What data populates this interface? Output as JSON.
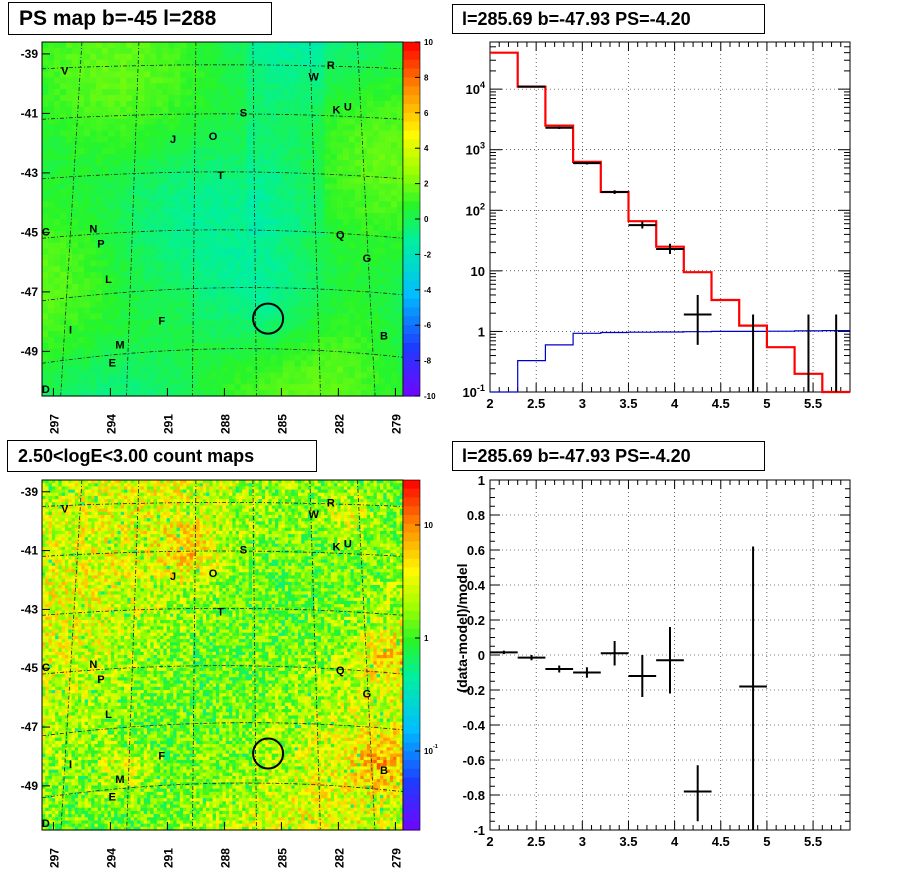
{
  "titles": {
    "map1": "PS map b=-45 l=288",
    "spec": "l=285.69 b=-47.93 PS=-4.20",
    "map2": "2.50<logE<3.00 count maps",
    "resid": "l=285.69 b=-47.93 PS=-4.20"
  },
  "chart_data": [
    {
      "type": "heatmap",
      "title": "PS map b=-45 l=288",
      "x_ticks": [
        "297",
        "294",
        "291",
        "288",
        "285",
        "282",
        "279"
      ],
      "y_ticks": [
        "-39",
        "-41",
        "-43",
        "-45",
        "-47",
        "-49"
      ],
      "xlim": [
        297.6,
        278.6
      ],
      "ylim": [
        -50.5,
        -38.6
      ],
      "colorbar": {
        "min": -10,
        "max": 10,
        "ticks": [
          "10",
          "8",
          "6",
          "4",
          "2",
          "0",
          "-2",
          "-4",
          "-6",
          "-8",
          "-10"
        ]
      },
      "source_labels": [
        {
          "t": "V",
          "l": 296.4,
          "b": -39.7
        },
        {
          "t": "W",
          "l": 283.3,
          "b": -39.9
        },
        {
          "t": "R",
          "l": 282.4,
          "b": -39.5
        },
        {
          "t": "S",
          "l": 287.0,
          "b": -41.1
        },
        {
          "t": "K",
          "l": 282.1,
          "b": -41.0
        },
        {
          "t": "U",
          "l": 281.5,
          "b": -40.9
        },
        {
          "t": "J",
          "l": 290.7,
          "b": -42.0
        },
        {
          "t": "O",
          "l": 288.6,
          "b": -41.9
        },
        {
          "t": "T",
          "l": 288.2,
          "b": -43.2
        },
        {
          "t": "N",
          "l": 294.9,
          "b": -45.0
        },
        {
          "t": "P",
          "l": 294.5,
          "b": -45.5
        },
        {
          "t": "Q",
          "l": 281.9,
          "b": -45.2
        },
        {
          "t": "G",
          "l": 280.5,
          "b": -46.0
        },
        {
          "t": "L",
          "l": 294.1,
          "b": -46.7
        },
        {
          "t": "F",
          "l": 291.3,
          "b": -48.1
        },
        {
          "t": "I",
          "l": 296.1,
          "b": -48.4
        },
        {
          "t": "M",
          "l": 293.5,
          "b": -48.9
        },
        {
          "t": "E",
          "l": 293.9,
          "b": -49.5
        },
        {
          "t": "B",
          "l": 279.6,
          "b": -48.6
        },
        {
          "t": "C",
          "l": 297.4,
          "b": -45.1
        },
        {
          "t": "D",
          "l": 297.4,
          "b": -50.4
        }
      ],
      "marker": {
        "l": 285.7,
        "b": -47.9
      }
    },
    {
      "type": "line",
      "title": "l=285.69 b=-47.93 PS=-4.20",
      "xlim": [
        2,
        5.9
      ],
      "ylim": [
        0.1,
        60000
      ],
      "yscale": "log",
      "x_ticks": [
        "2",
        "2.5",
        "3",
        "3.5",
        "4",
        "4.5",
        "5",
        "5.5"
      ],
      "y_ticks": [
        "10^-1",
        "1",
        "10",
        "10^2",
        "10^3",
        "10^4"
      ],
      "model_total": {
        "edges": [
          2,
          2.3,
          2.6,
          2.9,
          3.2,
          3.5,
          3.8,
          4.1,
          4.4,
          4.7,
          5.0,
          5.3,
          5.6,
          5.9
        ],
        "values": [
          40000,
          11000,
          2500,
          630,
          200,
          66,
          25,
          9.5,
          3.3,
          1.25,
          0.55,
          0.2,
          0.08
        ]
      },
      "model_source": {
        "edges": [
          2,
          2.3,
          2.6,
          2.9,
          3.2,
          3.5,
          3.8,
          4.1,
          4.4,
          4.7,
          5.0,
          5.3,
          5.6,
          5.9
        ],
        "values": [
          0.07,
          0.33,
          0.6,
          0.93,
          0.96,
          0.97,
          0.98,
          0.99,
          1.0,
          1.0,
          1.01,
          1.02,
          1.03
        ]
      },
      "data": [
        {
          "x": 2.45,
          "y": 11000,
          "xerr": 0.15,
          "ylo": 10700,
          "yhi": 11300
        },
        {
          "x": 2.75,
          "y": 2300,
          "xerr": 0.15,
          "ylo": 2200,
          "yhi": 2400
        },
        {
          "x": 3.05,
          "y": 600,
          "xerr": 0.15,
          "ylo": 570,
          "yhi": 630
        },
        {
          "x": 3.35,
          "y": 200,
          "xerr": 0.15,
          "ylo": 186,
          "yhi": 214
        },
        {
          "x": 3.65,
          "y": 57,
          "xerr": 0.15,
          "ylo": 50,
          "yhi": 65
        },
        {
          "x": 3.95,
          "y": 23,
          "xerr": 0.15,
          "ylo": 19,
          "yhi": 28
        },
        {
          "x": 4.25,
          "y": 1.9,
          "xerr": 0.15,
          "ylo": 0.6,
          "yhi": 4.0
        },
        {
          "x": 4.85,
          "y": 0.1,
          "xerr": 0,
          "ylo": 0.1,
          "yhi": 1.9
        },
        {
          "x": 5.45,
          "y": 0.1,
          "xerr": 0,
          "ylo": 0.1,
          "yhi": 1.9
        },
        {
          "x": 5.75,
          "y": 0.1,
          "xerr": 0,
          "ylo": 0.1,
          "yhi": 1.9
        }
      ]
    },
    {
      "type": "heatmap",
      "title": "2.50<logE<3.00 count maps",
      "x_ticks": [
        "297",
        "294",
        "291",
        "288",
        "285",
        "282",
        "279"
      ],
      "y_ticks": [
        "-39",
        "-41",
        "-43",
        "-45",
        "-47",
        "-49"
      ],
      "xlim": [
        297.6,
        278.6
      ],
      "ylim": [
        -50.5,
        -38.6
      ],
      "colorbar": {
        "scale": "log",
        "min": 0.02,
        "max": 25,
        "ticks": [
          "10",
          "1",
          "10^-1"
        ]
      }
    },
    {
      "type": "scatter",
      "title": "l=285.69 b=-47.93 PS=-4.20",
      "ylabel": "(data-model)/model",
      "xlim": [
        2,
        5.9
      ],
      "ylim": [
        -1,
        1
      ],
      "x_ticks": [
        "2",
        "2.5",
        "3",
        "3.5",
        "4",
        "4.5",
        "5",
        "5.5"
      ],
      "y_ticks": [
        "1",
        "0.8",
        "0.6",
        "0.4",
        "0.2",
        "0",
        "-0.2",
        "-0.4",
        "-0.6",
        "-0.8",
        "-1"
      ],
      "data": [
        {
          "x": 2.15,
          "y": 0.015,
          "xerr": 0.15,
          "ylo": 0.005,
          "yhi": 0.025
        },
        {
          "x": 2.45,
          "y": -0.015,
          "xerr": 0.15,
          "ylo": -0.03,
          "yhi": 0.0
        },
        {
          "x": 2.75,
          "y": -0.08,
          "xerr": 0.15,
          "ylo": -0.1,
          "yhi": -0.06
        },
        {
          "x": 3.05,
          "y": -0.1,
          "xerr": 0.15,
          "ylo": -0.13,
          "yhi": -0.07
        },
        {
          "x": 3.35,
          "y": 0.01,
          "xerr": 0.15,
          "ylo": -0.06,
          "yhi": 0.08
        },
        {
          "x": 3.65,
          "y": -0.12,
          "xerr": 0.15,
          "ylo": -0.24,
          "yhi": 0.0
        },
        {
          "x": 3.95,
          "y": -0.03,
          "xerr": 0.15,
          "ylo": -0.22,
          "yhi": 0.16
        },
        {
          "x": 4.25,
          "y": -0.78,
          "xerr": 0.15,
          "ylo": -0.95,
          "yhi": -0.63
        },
        {
          "x": 4.85,
          "y": -0.18,
          "xerr": 0.15,
          "ylo": -1.0,
          "yhi": 0.62
        }
      ]
    }
  ]
}
